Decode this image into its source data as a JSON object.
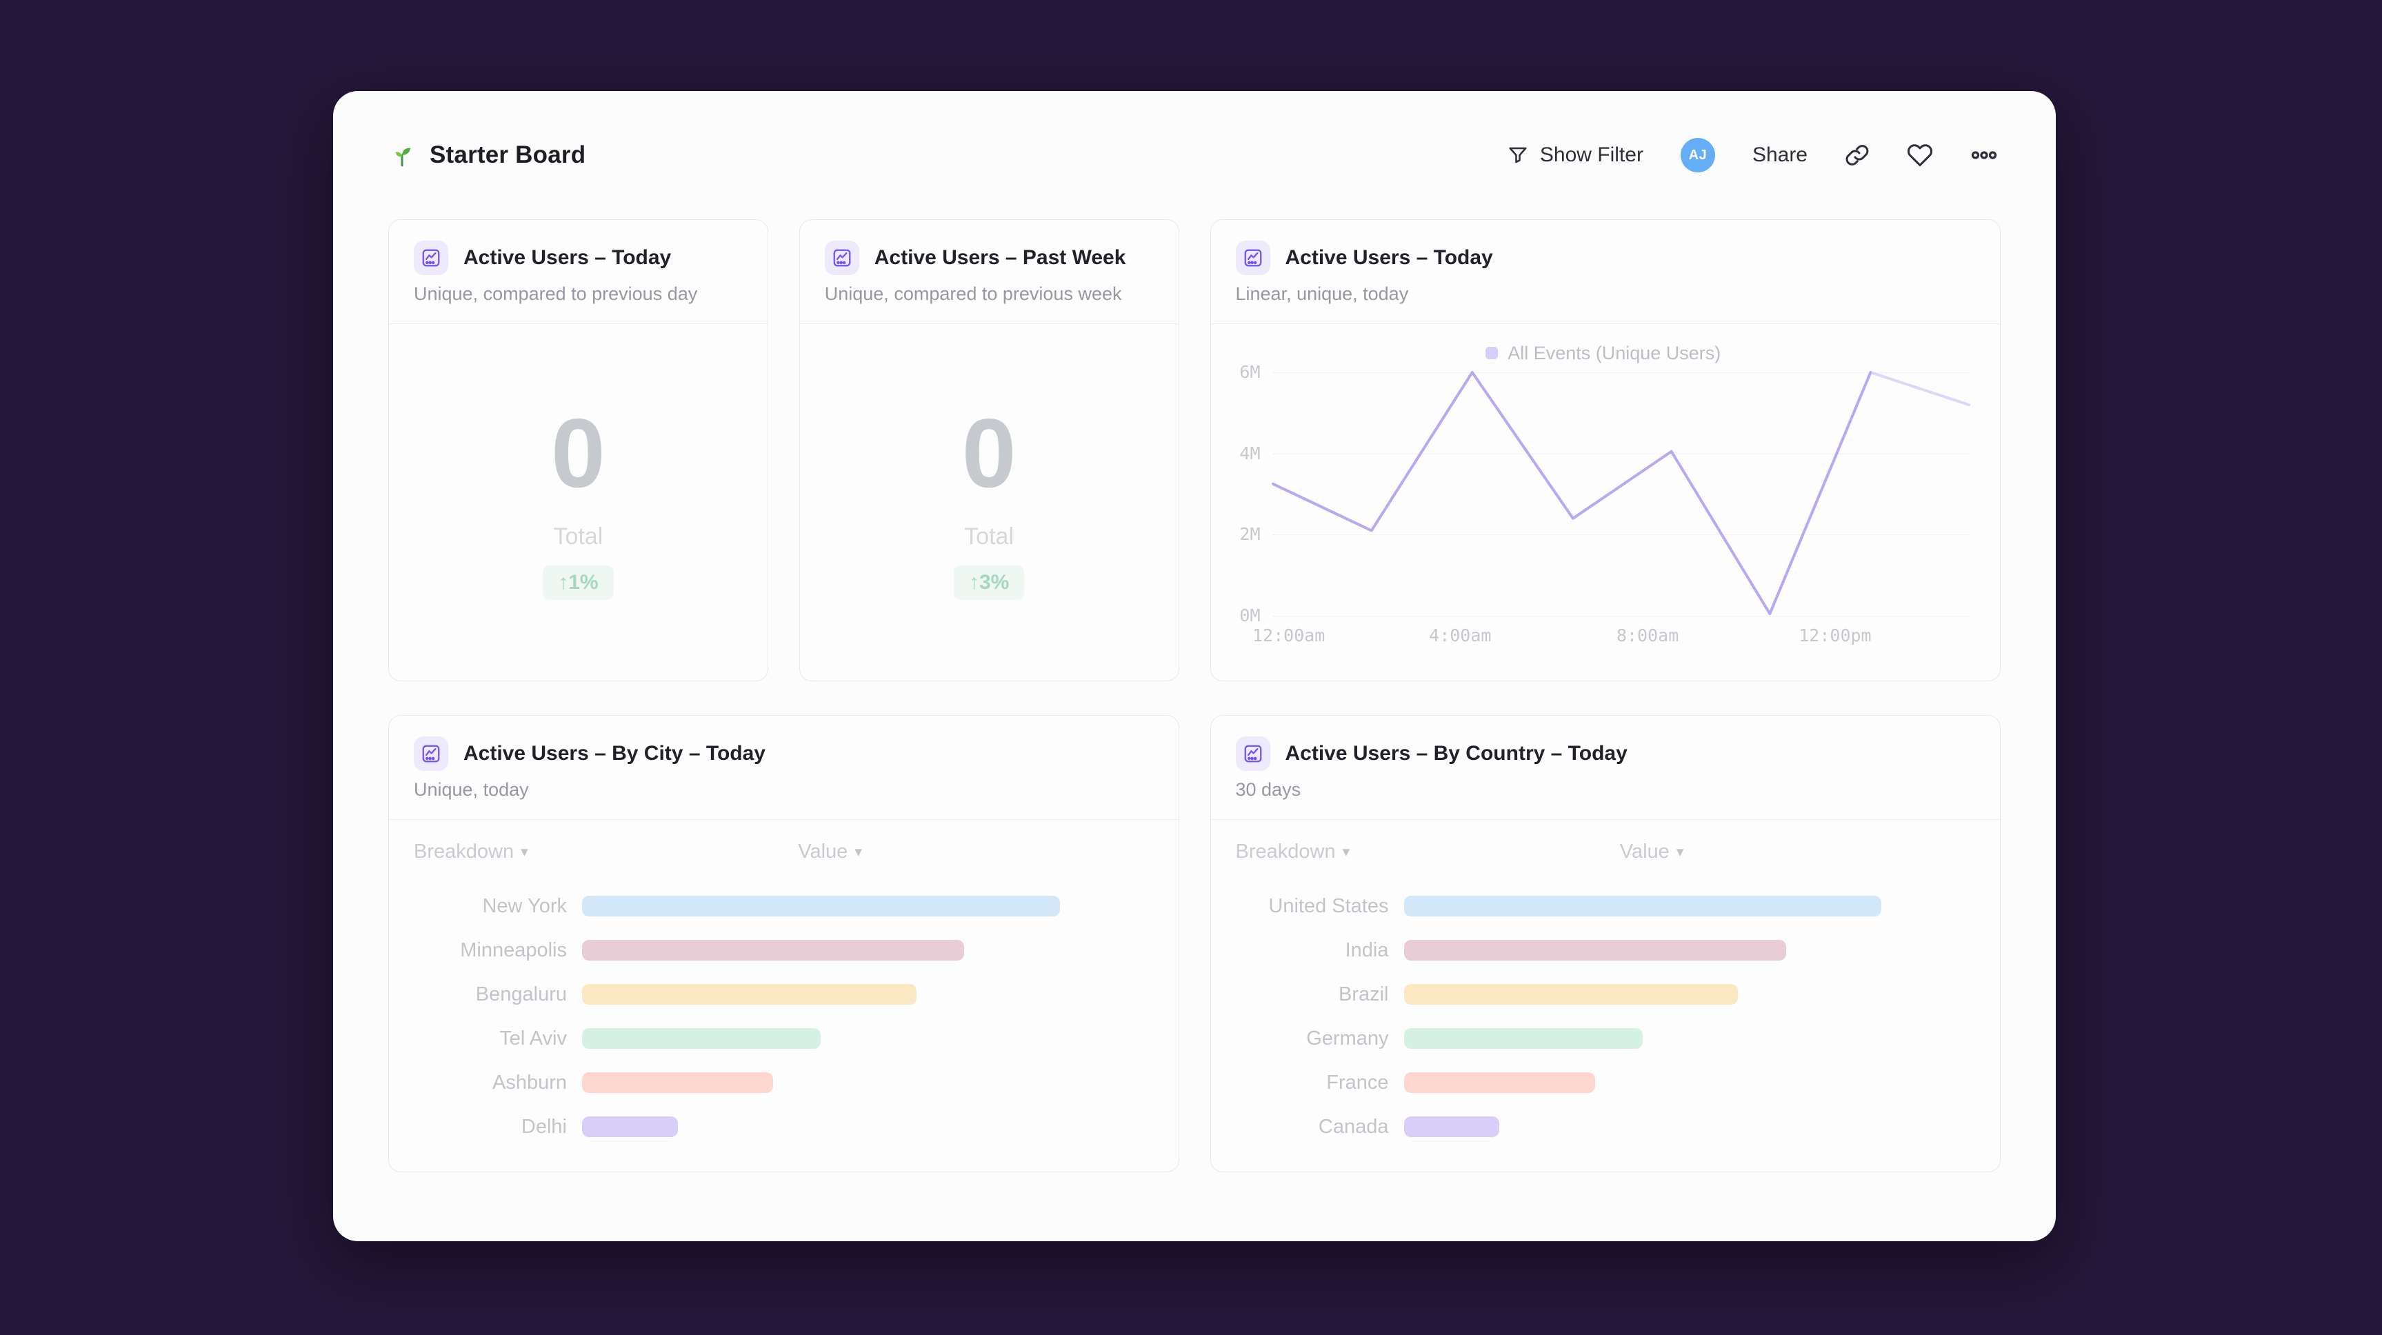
{
  "header": {
    "title": "Starter Board",
    "actions": {
      "show_filter_label": "Show Filter",
      "share_label": "Share",
      "avatar_initials": "AJ",
      "avatar_color": "#64aef6"
    },
    "icons": {
      "title_icon": "seedling",
      "filter": "funnel",
      "link": "copy-link",
      "favorite": "heart-outline",
      "more": "three-circles-ellipsis"
    }
  },
  "cards": [
    {
      "type": "metric",
      "title": "Active Users – Today",
      "subtitle": "Unique, compared to previous day",
      "metric": {
        "value": "0",
        "label": "Total",
        "delta": "↑1%",
        "delta_color": "#a6d7c2",
        "delta_bg": "#eef7f2"
      }
    },
    {
      "type": "metric",
      "title": "Active Users – Past Week",
      "subtitle": "Unique, compared to previous week",
      "metric": {
        "value": "0",
        "label": "Total",
        "delta": "↑3%",
        "delta_color": "#a6d7c2",
        "delta_bg": "#eef7f2"
      }
    },
    {
      "type": "line-chart",
      "title": "Active Users – Today",
      "subtitle": "Linear, unique, today",
      "chart_index": 0
    },
    {
      "type": "breakdown",
      "title": "Active Users – By City – Today",
      "subtitle": "Unique, today",
      "columns": {
        "breakdown": "Breakdown",
        "value": "Value"
      },
      "chart_index": 1
    },
    {
      "type": "breakdown",
      "title": "Active Users – By Country – Today",
      "subtitle": "30 days",
      "columns": {
        "breakdown": "Breakdown",
        "value": "Value"
      },
      "chart_index": 2
    }
  ],
  "chart_data": [
    {
      "id": "active-users-today-line",
      "type": "line",
      "title": "Active Users – Today",
      "legend": [
        "All Events (Unique Users)"
      ],
      "legend_position": "top-center",
      "line_color": "#b5aaf1",
      "grid": "horizontal-dotted",
      "xlim_hours": [
        0,
        14.9
      ],
      "ylim_millions": [
        0,
        6
      ],
      "y_ticks_desc": [
        "6M",
        "4M",
        "2M",
        "0M"
      ],
      "x_ticks": [
        {
          "hours": 0,
          "label": "12:00am"
        },
        {
          "hours": 4,
          "label": "4:00am"
        },
        {
          "hours": 8,
          "label": "8:00am"
        },
        {
          "hours": 12,
          "label": "12:00pm"
        }
      ],
      "series": [
        {
          "name": "All Events (Unique Users)",
          "x_hours": [
            0,
            2.1,
            4.25,
            6.4,
            8.5,
            10.6,
            12.75,
            14.85
          ],
          "values_millions": [
            3.25,
            2.1,
            6.0,
            2.4,
            4.05,
            0.05,
            6.0,
            5.2
          ],
          "last_segment_faded": true
        }
      ]
    },
    {
      "id": "active-users-by-city",
      "type": "bar",
      "orientation": "horizontal",
      "title": "Active Users – By City – Today",
      "categories": [
        "New York",
        "Minneapolis",
        "Bengaluru",
        "Tel Aviv",
        "Ashburn",
        "Delhi"
      ],
      "values_relative_pct": [
        100,
        80,
        70,
        50,
        40,
        20
      ],
      "bar_colors": [
        "#d2e8f8",
        "#e8cdd6",
        "#fbe8c3",
        "#d4f1e4",
        "#fdd6cd",
        "#d9cefa"
      ],
      "max_bar_track_pct": 84
    },
    {
      "id": "active-users-by-country",
      "type": "bar",
      "orientation": "horizontal",
      "title": "Active Users – By Country – Today",
      "categories": [
        "United States",
        "India",
        "Brazil",
        "Germany",
        "France",
        "Canada"
      ],
      "values_relative_pct": [
        100,
        80,
        70,
        50,
        40,
        20
      ],
      "bar_colors": [
        "#d2e8f8",
        "#e8cdd6",
        "#fbe8c3",
        "#d4f1e4",
        "#fdd6cd",
        "#d9cefa"
      ],
      "max_bar_track_pct": 84
    }
  ]
}
